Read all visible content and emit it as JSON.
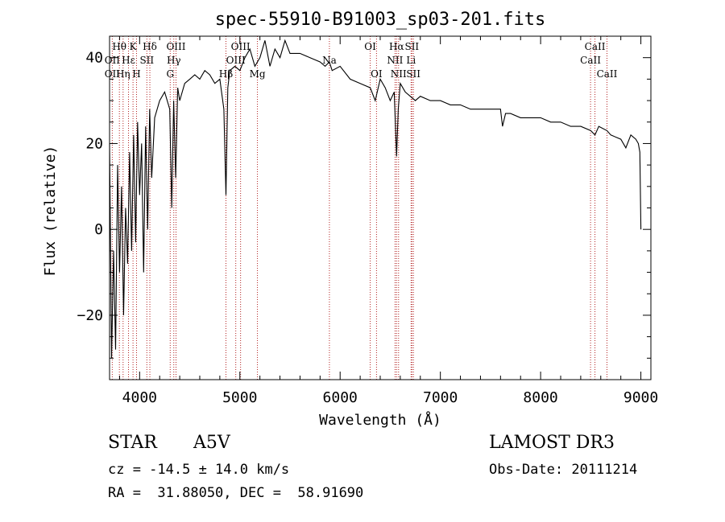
{
  "chart_data": {
    "type": "line",
    "title": "spec-55910-B91003_sp03-201.fits",
    "xlabel": "Wavelength (Å)",
    "ylabel": "Flux (relative)",
    "xlim": [
      3700,
      9100
    ],
    "ylim": [
      -35,
      45
    ],
    "x_ticks": [
      4000,
      5000,
      6000,
      7000,
      8000,
      9000
    ],
    "y_ticks": [
      -20,
      0,
      20,
      40
    ],
    "line_markers": [
      {
        "label": "Hθ",
        "wavelength": 3798,
        "row": 0
      },
      {
        "label": "OII",
        "wavelength": 3727,
        "row": 1
      },
      {
        "label": "OII",
        "wavelength": 3727,
        "row": 2
      },
      {
        "label": "Hη",
        "wavelength": 3835,
        "row": 2
      },
      {
        "label": "Hε",
        "wavelength": 3889,
        "row": 1
      },
      {
        "label": "K",
        "wavelength": 3934,
        "row": 0
      },
      {
        "label": "H",
        "wavelength": 3969,
        "row": 2
      },
      {
        "label": "SII",
        "wavelength": 4072,
        "row": 1
      },
      {
        "label": "Hδ",
        "wavelength": 4102,
        "row": 0
      },
      {
        "label": "G",
        "wavelength": 4305,
        "row": 2
      },
      {
        "label": "OIII",
        "wavelength": 4363,
        "row": 0
      },
      {
        "label": "Hγ",
        "wavelength": 4341,
        "row": 1
      },
      {
        "label": "Hβ",
        "wavelength": 4861,
        "row": 2
      },
      {
        "label": "OIII",
        "wavelength": 5007,
        "row": 0
      },
      {
        "label": "OIII",
        "wavelength": 4959,
        "row": 1
      },
      {
        "label": "Mg",
        "wavelength": 5175,
        "row": 2
      },
      {
        "label": "Na",
        "wavelength": 5893,
        "row": 1
      },
      {
        "label": "OI",
        "wavelength": 6300,
        "row": 0
      },
      {
        "label": "OI",
        "wavelength": 6363,
        "row": 2
      },
      {
        "label": "Hα",
        "wavelength": 6563,
        "row": 0
      },
      {
        "label": "SII",
        "wavelength": 6716,
        "row": 0
      },
      {
        "label": "NII",
        "wavelength": 6548,
        "row": 1
      },
      {
        "label": "Li",
        "wavelength": 6708,
        "row": 1
      },
      {
        "label": "NII",
        "wavelength": 6583,
        "row": 2
      },
      {
        "label": "SII",
        "wavelength": 6731,
        "row": 2
      },
      {
        "label": "CaII",
        "wavelength": 8542,
        "row": 0
      },
      {
        "label": "CaII",
        "wavelength": 8498,
        "row": 1
      },
      {
        "label": "CaII",
        "wavelength": 8662,
        "row": 2
      }
    ],
    "series": [
      {
        "name": "flux",
        "x": [
          3700,
          3720,
          3740,
          3760,
          3780,
          3800,
          3820,
          3840,
          3860,
          3880,
          3900,
          3920,
          3940,
          3960,
          3980,
          4000,
          4020,
          4040,
          4060,
          4080,
          4100,
          4120,
          4150,
          4200,
          4250,
          4300,
          4320,
          4340,
          4360,
          4380,
          4400,
          4450,
          4500,
          4550,
          4600,
          4650,
          4700,
          4750,
          4800,
          4840,
          4861,
          4880,
          4900,
          4950,
          5000,
          5050,
          5100,
          5150,
          5200,
          5250,
          5300,
          5350,
          5400,
          5450,
          5500,
          5600,
          5700,
          5800,
          5850,
          5893,
          5920,
          6000,
          6100,
          6200,
          6300,
          6350,
          6400,
          6450,
          6500,
          6540,
          6563,
          6580,
          6600,
          6650,
          6700,
          6750,
          6800,
          6900,
          7000,
          7100,
          7200,
          7300,
          7400,
          7500,
          7600,
          7620,
          7650,
          7700,
          7800,
          7900,
          8000,
          8100,
          8200,
          8300,
          8400,
          8500,
          8542,
          8580,
          8662,
          8700,
          8800,
          8850,
          8900,
          8950,
          8975,
          8990,
          9000
        ],
        "y": [
          20,
          -30,
          -5,
          -28,
          15,
          -10,
          10,
          -20,
          5,
          -8,
          18,
          -5,
          22,
          -3,
          25,
          8,
          20,
          -10,
          24,
          0,
          28,
          12,
          26,
          30,
          32,
          28,
          5,
          30,
          12,
          33,
          30,
          34,
          35,
          36,
          35,
          37,
          36,
          34,
          35,
          28,
          8,
          33,
          37,
          38,
          37,
          40,
          42,
          38,
          40,
          44,
          38,
          42,
          40,
          44,
          41,
          41,
          40,
          39,
          38,
          39,
          37,
          38,
          35,
          34,
          33,
          30,
          35,
          33,
          30,
          32,
          17,
          28,
          34,
          32,
          31,
          30,
          31,
          30,
          30,
          29,
          29,
          28,
          28,
          28,
          28,
          24,
          27,
          27,
          26,
          26,
          26,
          25,
          25,
          24,
          24,
          23,
          22,
          24,
          23,
          22,
          21,
          19,
          22,
          21,
          20,
          18,
          0
        ]
      }
    ]
  },
  "info": {
    "object_type": "STAR",
    "subclass": "A5V",
    "survey": "LAMOST DR3",
    "redshift": "cz = -14.5 ± 14.0 km/s",
    "obs_date": "Obs-Date: 20111214",
    "coords": "RA =  31.88050, DEC =  58.91690"
  },
  "colors": {
    "axis": "#000000",
    "spectrum": "#000000",
    "marker_line": "#b22222"
  }
}
